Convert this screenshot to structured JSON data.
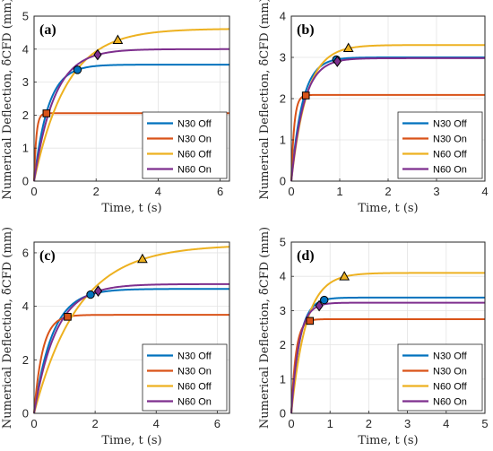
{
  "chart_data": [
    {
      "type": "line",
      "panel_label": "(a)",
      "xlabel": "Time, t (s)",
      "ylabel": "Numerical Deflection, δ̃CFD (mm)",
      "xlim": [
        0,
        6.3
      ],
      "ylim": [
        0,
        5
      ],
      "xticks": [
        0,
        2,
        4,
        6
      ],
      "yticks": [
        0,
        1,
        2,
        3,
        4,
        5
      ],
      "grid": true,
      "legend_position": "bottom-right",
      "series": [
        {
          "name": "N30 Off",
          "color": "#0072BD",
          "final": 3.53,
          "tau": 0.45,
          "marker": "circle",
          "marker_t": 1.4
        },
        {
          "name": "N30 On",
          "color": "#D95319",
          "final": 2.06,
          "tau": 0.07,
          "marker": "square",
          "marker_t": 0.4
        },
        {
          "name": "N60 Off",
          "color": "#EDB120",
          "final": 4.62,
          "tau": 1.05,
          "marker": "triangle",
          "marker_t": 2.7
        },
        {
          "name": "N60 On",
          "color": "#7E2F8E",
          "final": 4.0,
          "tau": 0.65,
          "marker": "diamond",
          "marker_t": 2.05
        }
      ]
    },
    {
      "type": "line",
      "panel_label": "(b)",
      "xlabel": "Time, t (s)",
      "ylabel": "Numerical Deflection, δ̃CFD (mm)",
      "xlim": [
        0,
        4
      ],
      "ylim": [
        0,
        4
      ],
      "xticks": [
        0,
        1,
        2,
        3,
        4
      ],
      "yticks": [
        0,
        1,
        2,
        3,
        4
      ],
      "grid": true,
      "legend_position": "bottom-right",
      "series": [
        {
          "name": "N30 Off",
          "color": "#0072BD",
          "final": 3.0,
          "tau": 0.23,
          "marker": "circle",
          "marker_t": 0.93
        },
        {
          "name": "N30 On",
          "color": "#D95319",
          "final": 2.09,
          "tau": 0.06,
          "marker": "square",
          "marker_t": 0.3
        },
        {
          "name": "N60 Off",
          "color": "#EDB120",
          "final": 3.3,
          "tau": 0.32,
          "marker": "triangle",
          "marker_t": 1.18
        },
        {
          "name": "N60 On",
          "color": "#7E2F8E",
          "final": 2.98,
          "tau": 0.26,
          "marker": "diamond",
          "marker_t": 0.95
        }
      ]
    },
    {
      "type": "line",
      "panel_label": "(c)",
      "xlabel": "Time, t (s)",
      "ylabel": "Numerical Deflection, δ̃CFD (mm)",
      "xlim": [
        0,
        6.4
      ],
      "ylim": [
        0,
        6.4
      ],
      "xticks": [
        0,
        2,
        4,
        6
      ],
      "yticks": [
        0,
        2,
        4,
        6
      ],
      "grid": true,
      "legend_position": "bottom-right",
      "series": [
        {
          "name": "N30 Off",
          "color": "#0072BD",
          "final": 4.65,
          "tau": 0.6,
          "marker": "circle",
          "marker_t": 1.85
        },
        {
          "name": "N30 On",
          "color": "#D95319",
          "final": 3.68,
          "tau": 0.28,
          "marker": "square",
          "marker_t": 1.1
        },
        {
          "name": "N60 Off",
          "color": "#EDB120",
          "final": 6.3,
          "tau": 1.45,
          "marker": "triangle",
          "marker_t": 3.55
        },
        {
          "name": "N60 On",
          "color": "#7E2F8E",
          "final": 4.83,
          "tau": 0.72,
          "marker": "diamond",
          "marker_t": 2.1
        }
      ]
    },
    {
      "type": "line",
      "panel_label": "(d)",
      "xlabel": "Time, t (s)",
      "ylabel": "Numerical Deflection, δ̃CFD (mm)",
      "xlim": [
        0,
        5
      ],
      "ylim": [
        0,
        5
      ],
      "xticks": [
        0,
        1,
        2,
        3,
        4,
        5
      ],
      "yticks": [
        0,
        1,
        2,
        3,
        4,
        5
      ],
      "grid": true,
      "legend_position": "bottom-right",
      "series": [
        {
          "name": "N30 Off",
          "color": "#0072BD",
          "final": 3.38,
          "tau": 0.22,
          "marker": "circle",
          "marker_t": 0.85
        },
        {
          "name": "N30 On",
          "color": "#D95319",
          "final": 2.75,
          "tau": 0.12,
          "marker": "square",
          "marker_t": 0.48
        },
        {
          "name": "N60 Off",
          "color": "#EDB120",
          "final": 4.1,
          "tau": 0.38,
          "marker": "triangle",
          "marker_t": 1.37
        },
        {
          "name": "N60 On",
          "color": "#7E2F8E",
          "final": 3.23,
          "tau": 0.2,
          "marker": "diamond",
          "marker_t": 0.72
        }
      ]
    }
  ]
}
